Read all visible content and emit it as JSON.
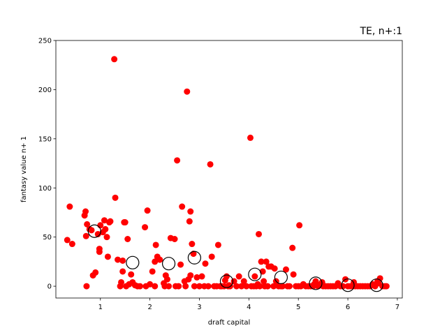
{
  "chart_data": {
    "type": "scatter",
    "title": "TE, n+:1",
    "xlabel": "draft capital",
    "ylabel": "fantasy value n+ 1",
    "xlim": [
      0.1,
      7.1
    ],
    "ylim": [
      -12,
      250
    ],
    "xticks": [
      1,
      2,
      3,
      4,
      5,
      6,
      7
    ],
    "yticks": [
      0,
      50,
      100,
      150,
      200,
      250
    ],
    "grid": false,
    "colors": {
      "points": "#ff0000",
      "means_edge": "#000000"
    },
    "series": [
      {
        "marker": "filled-circle",
        "points": [
          [
            0.33,
            47
          ],
          [
            0.38,
            81
          ],
          [
            0.43,
            43
          ],
          [
            0.68,
            72
          ],
          [
            0.7,
            76
          ],
          [
            0.71,
            51
          ],
          [
            0.72,
            0
          ],
          [
            0.73,
            63
          ],
          [
            0.78,
            58
          ],
          [
            0.82,
            57
          ],
          [
            0.85,
            11
          ],
          [
            0.9,
            14
          ],
          [
            0.95,
            53
          ],
          [
            0.98,
            38
          ],
          [
            0.98,
            35
          ],
          [
            1.0,
            62
          ],
          [
            1.05,
            55
          ],
          [
            1.08,
            67
          ],
          [
            1.1,
            58
          ],
          [
            1.13,
            50
          ],
          [
            1.15,
            30
          ],
          [
            1.18,
            65
          ],
          [
            1.2,
            66
          ],
          [
            1.28,
            231
          ],
          [
            1.3,
            90
          ],
          [
            1.35,
            27
          ],
          [
            1.4,
            0
          ],
          [
            1.42,
            4
          ],
          [
            1.45,
            26
          ],
          [
            1.45,
            15
          ],
          [
            1.48,
            65
          ],
          [
            1.5,
            65
          ],
          [
            1.52,
            0
          ],
          [
            1.55,
            48
          ],
          [
            1.58,
            2
          ],
          [
            1.62,
            12
          ],
          [
            1.65,
            4
          ],
          [
            1.7,
            1
          ],
          [
            1.75,
            0
          ],
          [
            1.8,
            0
          ],
          [
            1.9,
            60
          ],
          [
            1.92,
            0
          ],
          [
            1.95,
            77
          ],
          [
            2.0,
            2
          ],
          [
            2.05,
            15
          ],
          [
            2.1,
            0
          ],
          [
            2.1,
            25
          ],
          [
            2.12,
            42
          ],
          [
            2.15,
            30
          ],
          [
            2.2,
            27
          ],
          [
            2.28,
            3
          ],
          [
            2.3,
            0
          ],
          [
            2.32,
            11
          ],
          [
            2.35,
            7
          ],
          [
            2.38,
            0
          ],
          [
            2.42,
            49
          ],
          [
            2.5,
            48
          ],
          [
            2.52,
            0
          ],
          [
            2.55,
            128
          ],
          [
            2.58,
            0
          ],
          [
            2.62,
            22
          ],
          [
            2.65,
            81
          ],
          [
            2.7,
            5
          ],
          [
            2.72,
            0
          ],
          [
            2.75,
            198
          ],
          [
            2.78,
            7
          ],
          [
            2.8,
            66
          ],
          [
            2.82,
            76
          ],
          [
            2.82,
            11
          ],
          [
            2.85,
            43
          ],
          [
            2.88,
            33
          ],
          [
            2.9,
            0
          ],
          [
            2.95,
            9
          ],
          [
            3.0,
            0
          ],
          [
            3.05,
            10
          ],
          [
            3.1,
            0
          ],
          [
            3.12,
            23
          ],
          [
            3.18,
            0
          ],
          [
            3.22,
            124
          ],
          [
            3.25,
            30
          ],
          [
            3.3,
            0
          ],
          [
            3.35,
            0
          ],
          [
            3.38,
            42
          ],
          [
            3.42,
            0
          ],
          [
            3.45,
            0
          ],
          [
            3.5,
            0
          ],
          [
            3.52,
            6
          ],
          [
            3.55,
            10
          ],
          [
            3.58,
            0
          ],
          [
            3.6,
            1
          ],
          [
            3.62,
            0
          ],
          [
            3.7,
            5
          ],
          [
            3.75,
            0
          ],
          [
            3.8,
            10
          ],
          [
            3.85,
            0
          ],
          [
            3.9,
            5
          ],
          [
            3.95,
            0
          ],
          [
            4.03,
            151
          ],
          [
            4.05,
            0
          ],
          [
            4.1,
            0
          ],
          [
            4.12,
            10
          ],
          [
            4.15,
            0
          ],
          [
            4.18,
            2
          ],
          [
            4.2,
            53
          ],
          [
            4.22,
            0
          ],
          [
            4.25,
            25
          ],
          [
            4.28,
            15
          ],
          [
            4.3,
            5
          ],
          [
            4.32,
            0
          ],
          [
            4.35,
            25
          ],
          [
            4.38,
            0
          ],
          [
            4.4,
            20
          ],
          [
            4.45,
            20
          ],
          [
            4.5,
            0
          ],
          [
            4.52,
            18
          ],
          [
            4.55,
            5
          ],
          [
            4.6,
            0
          ],
          [
            4.65,
            0
          ],
          [
            4.68,
            0
          ],
          [
            4.75,
            17
          ],
          [
            4.78,
            0
          ],
          [
            4.82,
            0
          ],
          [
            4.88,
            39
          ],
          [
            4.9,
            12
          ],
          [
            4.95,
            0
          ],
          [
            5.0,
            0
          ],
          [
            5.02,
            62
          ],
          [
            5.05,
            0
          ],
          [
            5.1,
            2
          ],
          [
            5.15,
            0
          ],
          [
            5.2,
            0
          ],
          [
            5.25,
            0
          ],
          [
            5.3,
            0
          ],
          [
            5.32,
            2
          ],
          [
            5.35,
            5
          ],
          [
            5.4,
            0
          ],
          [
            5.45,
            2
          ],
          [
            5.48,
            4
          ],
          [
            5.5,
            0
          ],
          [
            5.55,
            0
          ],
          [
            5.6,
            0
          ],
          [
            5.65,
            0
          ],
          [
            5.7,
            0
          ],
          [
            5.75,
            0
          ],
          [
            5.8,
            3
          ],
          [
            5.85,
            0
          ],
          [
            5.9,
            0
          ],
          [
            5.95,
            7
          ],
          [
            6.0,
            0
          ],
          [
            6.05,
            0
          ],
          [
            6.1,
            0
          ],
          [
            6.12,
            4
          ],
          [
            6.15,
            0
          ],
          [
            6.2,
            0
          ],
          [
            6.25,
            0
          ],
          [
            6.3,
            0
          ],
          [
            6.35,
            0
          ],
          [
            6.4,
            0
          ],
          [
            6.45,
            0
          ],
          [
            6.5,
            2
          ],
          [
            6.55,
            0
          ],
          [
            6.6,
            5
          ],
          [
            6.62,
            3
          ],
          [
            6.65,
            8
          ],
          [
            6.7,
            0
          ],
          [
            6.75,
            0
          ],
          [
            6.78,
            0
          ]
        ]
      },
      {
        "marker": "open-circle",
        "points": [
          [
            0.88,
            56
          ],
          [
            1.65,
            24
          ],
          [
            2.38,
            23
          ],
          [
            2.9,
            29
          ],
          [
            3.55,
            5
          ],
          [
            4.12,
            12
          ],
          [
            4.65,
            9
          ],
          [
            5.35,
            3
          ],
          [
            6.0,
            1
          ],
          [
            6.58,
            1
          ]
        ]
      }
    ]
  }
}
